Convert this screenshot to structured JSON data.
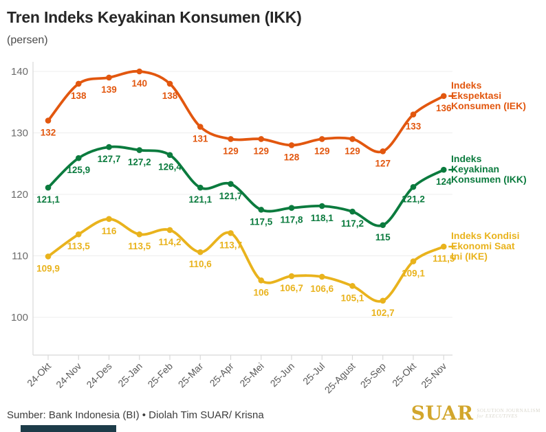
{
  "title": "Tren Indeks Keyakinan Konsumen (IKK)",
  "subtitle": "(persen)",
  "source": "Sumber: Bank Indonesia (BI) • Diolah Tim SUAR/ Krisna",
  "logo": {
    "word": "SUAR",
    "tagline1": "SOLUTION JOURNALISM",
    "tagline2": "for EXECUTIVES",
    "color": "#D2A62C"
  },
  "colors": {
    "iek_orange": "#E2570F",
    "ikk_green": "#0B7B3E",
    "ike_yellow": "#E9B31D",
    "grid": "#ececec",
    "axis": "#d8d8d8",
    "axis_text": "#6b6b6b",
    "accent_bar": "#1d3c49"
  },
  "chart_data": {
    "type": "line",
    "title": "Tren Indeks Keyakinan Konsumen (IKK)",
    "subtitle": "(persen)",
    "xlabel": "",
    "ylabel": "persen",
    "ylim": [
      100,
      140
    ],
    "yticks": [
      100,
      110,
      120,
      130,
      140
    ],
    "grid": true,
    "legend_position": "right",
    "categories": [
      "24-Okt",
      "24-Nov",
      "24-Des",
      "25-Jan",
      "25-Feb",
      "25-Mar",
      "25-Apr",
      "25-Mei",
      "25-Jun",
      "25-Jul",
      "25-Agust",
      "25-Sep",
      "25-Okt",
      "25-Nov"
    ],
    "series": [
      {
        "name": "Indeks Ekspektasi Konsumen (IEK)",
        "legend_lines": [
          "Indeks",
          "Ekspektasi",
          "Konsumen (IEK)"
        ],
        "color": "#E2570F",
        "values": [
          132,
          138,
          139,
          140,
          138,
          131,
          129,
          129,
          128,
          129,
          129,
          127,
          133,
          136
        ],
        "labels": [
          "132",
          "138",
          "139",
          "140",
          "138",
          "131",
          "129",
          "129",
          "128",
          "129",
          "129",
          "127",
          "133",
          "136"
        ]
      },
      {
        "name": "Indeks Keyakinan Konsumen (IKK)",
        "legend_lines": [
          "Indeks",
          "Keyakinan",
          "Konsumen (IKK)"
        ],
        "color": "#0B7B3E",
        "values": [
          121.1,
          125.9,
          127.7,
          127.2,
          126.4,
          121.1,
          121.7,
          117.5,
          117.8,
          118.1,
          117.2,
          115,
          121.2,
          124
        ],
        "labels": [
          "121,1",
          "125,9",
          "127,7",
          "127,2",
          "126,4",
          "121,1",
          "121,7",
          "117,5",
          "117,8",
          "118,1",
          "117,2",
          "115",
          "121,2",
          "124"
        ]
      },
      {
        "name": "Indeks Kondisi Ekonomi Saat Ini (IKE)",
        "legend_lines": [
          "Indeks Kondisi",
          "Ekonomi Saat",
          "Ini (IKE)"
        ],
        "color": "#E9B31D",
        "values": [
          109.9,
          113.5,
          116,
          113.5,
          114.2,
          110.6,
          113.7,
          106,
          106.7,
          106.6,
          105.1,
          102.7,
          109.1,
          111.5
        ],
        "labels": [
          "109,9",
          "113,5",
          "116",
          "113,5",
          "114,2",
          "110,6",
          "113,7",
          "106",
          "106,7",
          "106,6",
          "105,1",
          "102,7",
          "109,1",
          "111,5"
        ]
      }
    ]
  }
}
